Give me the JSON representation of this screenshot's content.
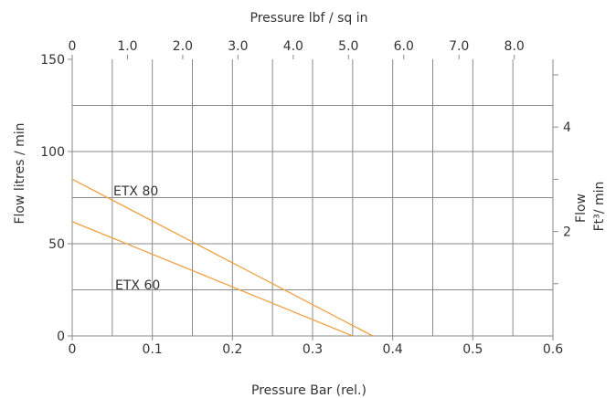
{
  "chart_data": {
    "type": "line",
    "title": "",
    "x_bottom": {
      "label": "Pressure Bar (rel.)",
      "range": [
        0,
        0.6
      ],
      "ticks": [
        0,
        0.1,
        0.2,
        0.3,
        0.4,
        0.5,
        0.6
      ],
      "tick_labels": [
        "0",
        "0.1",
        "0.2",
        "0.3",
        "0.4",
        "0.5",
        "0.6"
      ]
    },
    "x_top": {
      "label": "Pressure lbf / sq in",
      "range": [
        0,
        8.7
      ],
      "ticks": [
        0,
        1.0,
        2.0,
        3.0,
        4.0,
        5.0,
        6.0,
        7.0,
        8.0
      ],
      "tick_labels": [
        "0",
        "1.0",
        "2.0",
        "3.0",
        "4.0",
        "5.0",
        "6.0",
        "7.0",
        "8.0"
      ]
    },
    "y_left": {
      "label": "Flow litres / min",
      "range": [
        0,
        150
      ],
      "ticks": [
        0,
        50,
        100,
        150
      ],
      "tick_labels": [
        "0",
        "50",
        "100",
        "150"
      ]
    },
    "y_right": {
      "label_line1": "Flow",
      "label_line2": "Ft³/ min",
      "ticks": [
        2,
        4
      ],
      "tick_labels": [
        "2",
        "4"
      ]
    },
    "grid": true,
    "series": [
      {
        "name": "ETX 80",
        "color": "#f0a040",
        "x": [
          0,
          0.375
        ],
        "y": [
          85,
          0
        ]
      },
      {
        "name": "ETX 60",
        "color": "#f0a040",
        "x": [
          0,
          0.35
        ],
        "y": [
          62,
          0
        ]
      }
    ]
  }
}
